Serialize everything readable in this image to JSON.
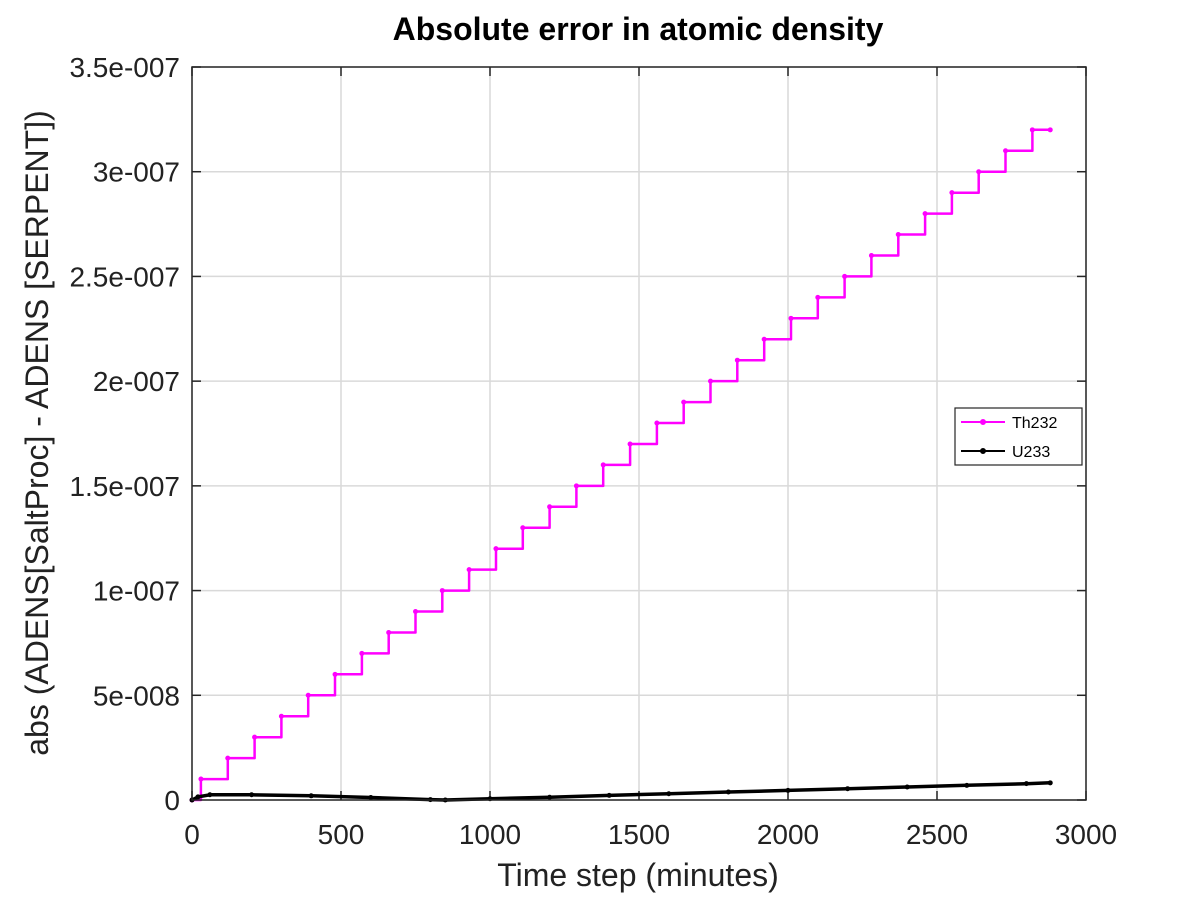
{
  "chart_data": {
    "type": "line",
    "title": "Absolute error in atomic density",
    "xlabel": "Time step (minutes)",
    "ylabel": "abs (ADENS[SaltProc] - ADENS [SERPENT])",
    "xlim": [
      0,
      3000
    ],
    "ylim": [
      0,
      3.5e-07
    ],
    "xticks": [
      0,
      500,
      1000,
      1500,
      2000,
      2500,
      3000
    ],
    "xtick_labels": [
      "0",
      "500",
      "1000",
      "1500",
      "2000",
      "2500",
      "3000"
    ],
    "yticks": [
      0,
      5e-08,
      1e-07,
      1.5e-07,
      2e-07,
      2.5e-07,
      3e-07,
      3.5e-07
    ],
    "ytick_labels": [
      "0",
      "5e-008",
      "1e-007",
      "1.5e-007",
      "2e-007",
      "2.5e-007",
      "3e-007",
      "3.5e-007"
    ],
    "grid": true,
    "legend_position": "right",
    "series": [
      {
        "name": "Th232",
        "color": "#ff00ff",
        "style": "step",
        "x": [
          0,
          30,
          120,
          210,
          300,
          390,
          480,
          570,
          660,
          750,
          840,
          930,
          1020,
          1110,
          1200,
          1290,
          1380,
          1470,
          1560,
          1650,
          1740,
          1830,
          1920,
          2010,
          2100,
          2190,
          2280,
          2370,
          2460,
          2550,
          2640,
          2730,
          2820,
          2880
        ],
        "y": [
          0,
          1e-08,
          2e-08,
          3e-08,
          4e-08,
          5e-08,
          6e-08,
          7e-08,
          8e-08,
          9e-08,
          1e-07,
          1.1e-07,
          1.2e-07,
          1.3e-07,
          1.4e-07,
          1.5e-07,
          1.6e-07,
          1.7e-07,
          1.8e-07,
          1.9e-07,
          2e-07,
          2.1e-07,
          2.2e-07,
          2.3e-07,
          2.4e-07,
          2.5e-07,
          2.6e-07,
          2.7e-07,
          2.8e-07,
          2.9e-07,
          3e-07,
          3.1e-07,
          3.2e-07,
          3.2e-07
        ]
      },
      {
        "name": "U233",
        "color": "#000000",
        "style": "line",
        "x": [
          0,
          20,
          60,
          200,
          400,
          600,
          800,
          850,
          1000,
          1200,
          1400,
          1600,
          1800,
          2000,
          2200,
          2400,
          2600,
          2800,
          2880
        ],
        "y": [
          0,
          1.5e-09,
          2.5e-09,
          2.5e-09,
          2e-09,
          1.2e-09,
          2e-10,
          0,
          6e-10,
          1.3e-09,
          2.2e-09,
          3e-09,
          3.8e-09,
          4.6e-09,
          5.4e-09,
          6.2e-09,
          7e-09,
          7.8e-09,
          8.2e-09
        ]
      }
    ]
  }
}
